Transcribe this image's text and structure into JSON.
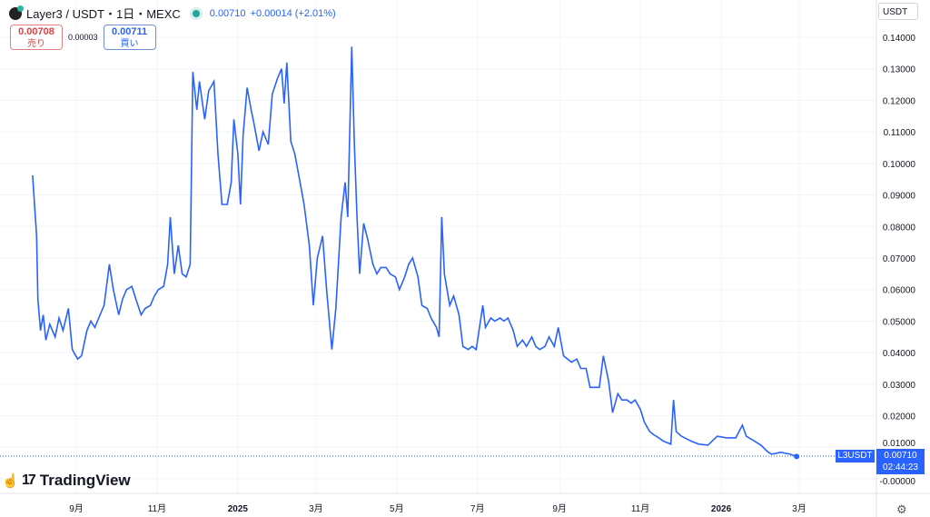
{
  "header": {
    "symbol": "Layer3 / USDT・1日・MEXC",
    "last_price": "0.00710",
    "change": "+0.00014 (+2.01%)",
    "status_color": "#26a69a"
  },
  "trade": {
    "sell_price": "0.00708",
    "sell_label": "売り",
    "spread": "0.00003",
    "buy_price": "0.00711",
    "buy_label": "買い"
  },
  "currency_button": "USDT",
  "brand": "TradingView",
  "price_label": {
    "symbol": "L3USDT",
    "price": "0.00710",
    "countdown": "02:44:23"
  },
  "colors": {
    "line": "#2962ff",
    "label_bg": "#2962ff",
    "grid": "#f0f3fa"
  },
  "chart_data": {
    "type": "line",
    "title": "",
    "xlabel": "",
    "ylabel": "",
    "ylim": [
      0,
      0.14
    ],
    "grid": true,
    "y_ticks": [
      "-0.00000",
      "0.01000",
      "0.02000",
      "0.03000",
      "0.04000",
      "0.05000",
      "0.06000",
      "0.07000",
      "0.08000",
      "0.09000",
      "0.10000",
      "0.11000",
      "0.12000",
      "0.13000",
      "0.14000"
    ],
    "x_ticks": [
      {
        "date": "2024-09-01",
        "label": "9月"
      },
      {
        "date": "2024-11-01",
        "label": "11月"
      },
      {
        "date": "2025-01-01",
        "label": "2025"
      },
      {
        "date": "2025-03-01",
        "label": "3月"
      },
      {
        "date": "2025-05-01",
        "label": "5月"
      },
      {
        "date": "2025-07-01",
        "label": "7月"
      },
      {
        "date": "2025-09-01",
        "label": "9月"
      },
      {
        "date": "2025-11-01",
        "label": "11月"
      },
      {
        "date": "2026-01-01",
        "label": "2026"
      },
      {
        "date": "2026-03-01",
        "label": "3月"
      }
    ],
    "series": [
      {
        "x": [
          "2024-07-30",
          "2024-08-02",
          "2024-08-03",
          "2024-08-05",
          "2024-08-07",
          "2024-08-09",
          "2024-08-12",
          "2024-08-16",
          "2024-08-19",
          "2024-08-22",
          "2024-08-26",
          "2024-08-29",
          "2024-09-02",
          "2024-09-05",
          "2024-09-09",
          "2024-09-12",
          "2024-09-15",
          "2024-09-19",
          "2024-09-22",
          "2024-09-26",
          "2024-09-29",
          "2024-10-03",
          "2024-10-06",
          "2024-10-09",
          "2024-10-13",
          "2024-10-16",
          "2024-10-20",
          "2024-10-23",
          "2024-10-27",
          "2024-10-30",
          "2024-11-02",
          "2024-11-06",
          "2024-11-09",
          "2024-11-11",
          "2024-11-14",
          "2024-11-17",
          "2024-11-20",
          "2024-11-23",
          "2024-11-26",
          "2024-11-28",
          "2024-12-01",
          "2024-12-03",
          "2024-12-07",
          "2024-12-10",
          "2024-12-14",
          "2024-12-17",
          "2024-12-20",
          "2024-12-24",
          "2024-12-27",
          "2024-12-29",
          "2025-01-01",
          "2025-01-03",
          "2025-01-05",
          "2025-01-08",
          "2025-01-11",
          "2025-01-13",
          "2025-01-17",
          "2025-01-20",
          "2025-01-24",
          "2025-01-27",
          "2025-01-31",
          "2025-02-03",
          "2025-02-05",
          "2025-02-07",
          "2025-02-10",
          "2025-02-13",
          "2025-02-17",
          "2025-02-20",
          "2025-02-24",
          "2025-02-27",
          "2025-03-02",
          "2025-03-06",
          "2025-03-09",
          "2025-03-13",
          "2025-03-16",
          "2025-03-20",
          "2025-03-23",
          "2025-03-25",
          "2025-03-28",
          "2025-03-30",
          "2025-04-01",
          "2025-04-03",
          "2025-04-06",
          "2025-04-09",
          "2025-04-13",
          "2025-04-16",
          "2025-04-19",
          "2025-04-23",
          "2025-04-26",
          "2025-04-30",
          "2025-05-03",
          "2025-05-07",
          "2025-05-10",
          "2025-05-13",
          "2025-05-17",
          "2025-05-20",
          "2025-05-24",
          "2025-05-27",
          "2025-05-31",
          "2025-06-02",
          "2025-06-04",
          "2025-06-06",
          "2025-06-10",
          "2025-06-13",
          "2025-06-17",
          "2025-06-20",
          "2025-06-24",
          "2025-06-27",
          "2025-06-30",
          "2025-07-05",
          "2025-07-07",
          "2025-07-11",
          "2025-07-14",
          "2025-07-18",
          "2025-07-21",
          "2025-07-24",
          "2025-07-28",
          "2025-07-31",
          "2025-08-04",
          "2025-08-07",
          "2025-08-11",
          "2025-08-14",
          "2025-08-17",
          "2025-08-21",
          "2025-08-24",
          "2025-08-28",
          "2025-08-31",
          "2025-09-04",
          "2025-09-07",
          "2025-09-10",
          "2025-09-14",
          "2025-09-17",
          "2025-09-21",
          "2025-09-24",
          "2025-09-28",
          "2025-10-01",
          "2025-10-04",
          "2025-10-08",
          "2025-10-11",
          "2025-10-15",
          "2025-10-18",
          "2025-10-22",
          "2025-10-25",
          "2025-10-28",
          "2025-11-01",
          "2025-11-04",
          "2025-11-08",
          "2025-11-11",
          "2025-11-15",
          "2025-11-18",
          "2025-11-24",
          "2025-11-26",
          "2025-11-28",
          "2025-12-02",
          "2025-12-09",
          "2025-12-15",
          "2025-12-22",
          "2025-12-29",
          "2026-01-05",
          "2026-01-12",
          "2026-01-17",
          "2026-01-20",
          "2026-01-26",
          "2026-01-31",
          "2026-02-05",
          "2026-02-08",
          "2026-02-15",
          "2026-02-22",
          "2026-02-27"
        ],
        "y": [
          0.0962,
          0.077,
          0.057,
          0.047,
          0.052,
          0.044,
          0.049,
          0.045,
          0.051,
          0.047,
          0.054,
          0.041,
          0.038,
          0.039,
          0.047,
          0.05,
          0.048,
          0.052,
          0.055,
          0.068,
          0.06,
          0.052,
          0.057,
          0.06,
          0.061,
          0.057,
          0.052,
          0.054,
          0.055,
          0.058,
          0.06,
          0.061,
          0.068,
          0.083,
          0.065,
          0.074,
          0.065,
          0.064,
          0.068,
          0.129,
          0.117,
          0.126,
          0.114,
          0.123,
          0.126,
          0.103,
          0.087,
          0.087,
          0.094,
          0.114,
          0.103,
          0.087,
          0.109,
          0.124,
          0.117,
          0.113,
          0.104,
          0.11,
          0.106,
          0.122,
          0.127,
          0.13,
          0.119,
          0.132,
          0.107,
          0.103,
          0.094,
          0.087,
          0.074,
          0.055,
          0.07,
          0.077,
          0.06,
          0.041,
          0.054,
          0.083,
          0.094,
          0.083,
          0.137,
          0.106,
          0.083,
          0.065,
          0.081,
          0.076,
          0.068,
          0.065,
          0.067,
          0.067,
          0.065,
          0.064,
          0.06,
          0.064,
          0.068,
          0.07,
          0.064,
          0.055,
          0.054,
          0.051,
          0.048,
          0.045,
          0.083,
          0.065,
          0.055,
          0.058,
          0.052,
          0.042,
          0.041,
          0.042,
          0.041,
          0.055,
          0.048,
          0.051,
          0.05,
          0.051,
          0.05,
          0.051,
          0.047,
          0.042,
          0.044,
          0.042,
          0.045,
          0.042,
          0.041,
          0.042,
          0.045,
          0.042,
          0.048,
          0.039,
          0.038,
          0.037,
          0.038,
          0.035,
          0.035,
          0.029,
          0.029,
          0.029,
          0.039,
          0.031,
          0.021,
          0.027,
          0.025,
          0.025,
          0.024,
          0.025,
          0.022,
          0.018,
          0.015,
          0.014,
          0.013,
          0.012,
          0.011,
          0.025,
          0.015,
          0.0135,
          0.012,
          0.011,
          0.0107,
          0.0135,
          0.013,
          0.013,
          0.017,
          0.0135,
          0.012,
          0.0107,
          0.0086,
          0.0078,
          0.0084,
          0.0078,
          0.0071
        ]
      }
    ]
  }
}
